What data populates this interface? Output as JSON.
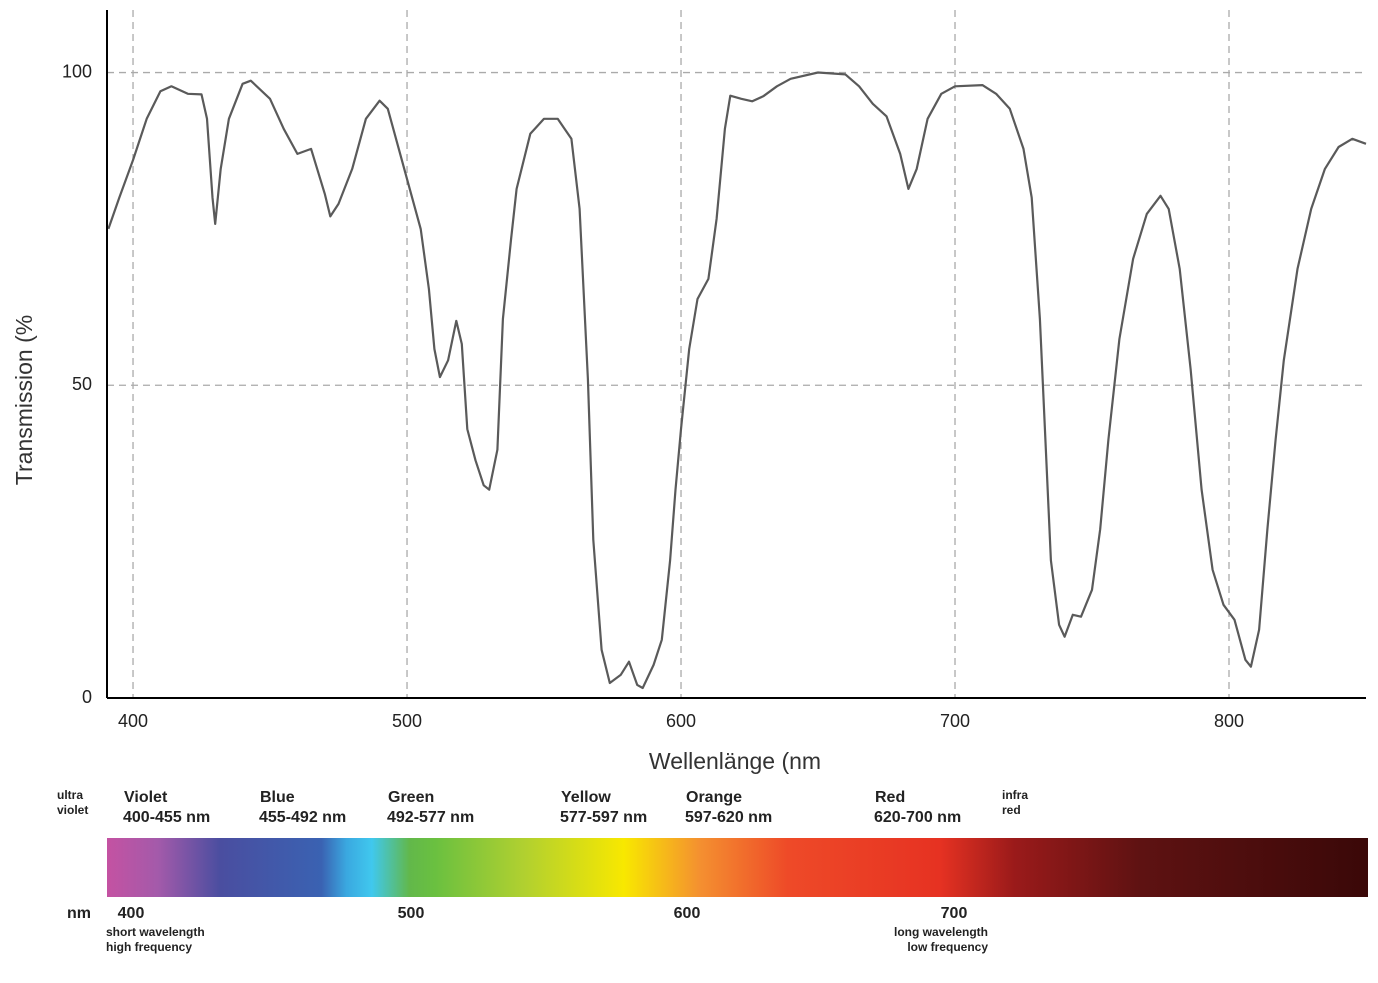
{
  "chart_data": {
    "type": "line",
    "xlabel": "Wellenlänge (nm",
    "ylabel": "Transmission (%",
    "x": [
      391,
      395,
      400,
      405,
      410,
      414,
      420,
      425,
      427,
      429,
      430,
      432,
      435,
      440,
      443,
      450,
      455,
      460,
      465,
      470,
      472,
      475,
      480,
      485,
      490,
      493,
      497,
      500,
      505,
      508,
      510,
      512,
      515,
      518,
      520,
      522,
      525,
      528,
      530,
      533,
      535,
      538,
      540,
      545,
      550,
      555,
      560,
      563,
      566,
      568,
      571,
      574,
      578,
      581,
      584,
      586,
      590,
      593,
      596,
      598,
      600,
      603,
      606,
      610,
      613,
      616,
      618,
      622,
      626,
      630,
      635,
      640,
      650,
      660,
      665,
      670,
      675,
      680,
      683,
      686,
      690,
      695,
      700,
      710,
      715,
      720,
      725,
      728,
      731,
      733,
      735,
      738,
      740,
      743,
      746,
      750,
      753,
      756,
      760,
      765,
      770,
      775,
      778,
      782,
      786,
      790,
      794,
      798,
      802,
      806,
      808,
      811,
      814,
      817,
      820,
      825,
      830,
      835,
      840,
      845,
      850
    ],
    "series": [
      {
        "color": "#5a5a5a",
        "values": [
          75,
          80,
          86,
          92.6,
          97,
          97.8,
          96.6,
          96.5,
          92.6,
          80,
          75.8,
          84.6,
          92.6,
          98.2,
          98.7,
          95.8,
          91,
          87,
          87.8,
          80.6,
          77,
          79,
          84.6,
          92.6,
          95.5,
          94.2,
          87.8,
          83,
          75,
          65.4,
          55.8,
          51.3,
          54,
          60.3,
          56.6,
          43,
          38,
          34,
          33.3,
          39.7,
          60.6,
          73.4,
          81.4,
          90.2,
          92.6,
          92.6,
          89.4,
          78.2,
          51,
          25.3,
          7.7,
          2.4,
          3.7,
          5.8,
          2.1,
          1.6,
          5.3,
          9.3,
          22,
          33.3,
          43,
          55.8,
          63.8,
          67,
          76.6,
          91,
          96.3,
          95.8,
          95.4,
          96.2,
          97.8,
          99,
          100,
          99.7,
          97.8,
          95,
          93,
          87,
          81.4,
          84.6,
          92.6,
          96.6,
          97.8,
          98,
          96.6,
          94.2,
          87.8,
          80,
          60.6,
          41.3,
          22,
          11.7,
          9.8,
          13.3,
          13,
          17.3,
          27,
          41.3,
          57.4,
          70.2,
          77.4,
          80.3,
          78.2,
          68.6,
          52.6,
          33.3,
          20.5,
          14.9,
          12.5,
          6.1,
          5,
          10.9,
          27,
          41.3,
          54,
          68.6,
          78.2,
          84.6,
          88.1,
          89.4,
          88.6
        ]
      }
    ],
    "xlim": [
      390.5,
      850
    ],
    "ylim": [
      0,
      110
    ],
    "xticks": [
      400,
      500,
      600,
      700,
      800
    ],
    "yticks": [
      0,
      50,
      100
    ],
    "grid": true
  },
  "spectrum": {
    "ultraviolet": [
      "ultra",
      "violet"
    ],
    "infrared": [
      "infra",
      "red"
    ],
    "bands": [
      {
        "name": "Violet",
        "range": "400-455 nm"
      },
      {
        "name": "Blue",
        "range": "455-492 nm"
      },
      {
        "name": "Green",
        "range": "492-577 nm"
      },
      {
        "name": "Yellow",
        "range": "577-597 nm"
      },
      {
        "name": "Orange",
        "range": "597-620 nm"
      },
      {
        "name": "Red",
        "range": "620-700 nm"
      }
    ],
    "unit": "nm",
    "ticks": [
      400,
      500,
      600,
      700
    ],
    "short_note": [
      "short wavelength",
      "high frequency"
    ],
    "long_note": [
      "long wavelength",
      "low frequency"
    ]
  }
}
